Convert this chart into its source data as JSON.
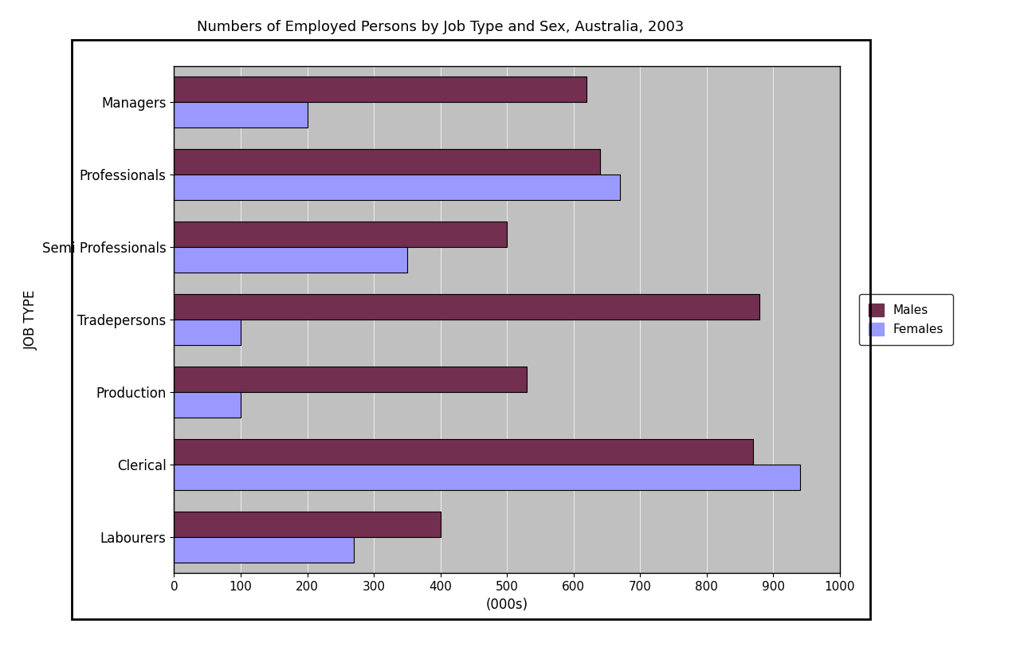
{
  "title": "Numbers of Employed Persons by Job Type and Sex, Australia, 2003",
  "categories": [
    "Managers",
    "Professionals",
    "Semi Professionals",
    "Tradepersons",
    "Production",
    "Clerical",
    "Labourers"
  ],
  "males": [
    620,
    640,
    500,
    880,
    530,
    870,
    400
  ],
  "females": [
    200,
    670,
    350,
    100,
    100,
    940,
    270
  ],
  "male_color": "#722F4F",
  "female_color": "#9999FF",
  "bar_edge_color": "#000000",
  "xlabel": "(000s)",
  "ylabel": "JOB TYPE",
  "xlim": [
    0,
    1000
  ],
  "xticks": [
    0,
    100,
    200,
    300,
    400,
    500,
    600,
    700,
    800,
    900,
    1000
  ],
  "plot_bg_color": "#C0C0C0",
  "fig_bg_color": "#FFFFFF",
  "legend_labels": [
    "Males",
    "Females"
  ],
  "title_fontsize": 13,
  "axis_label_fontsize": 12,
  "tick_fontsize": 11,
  "legend_fontsize": 11,
  "category_fontsize": 12,
  "bar_height": 0.35
}
